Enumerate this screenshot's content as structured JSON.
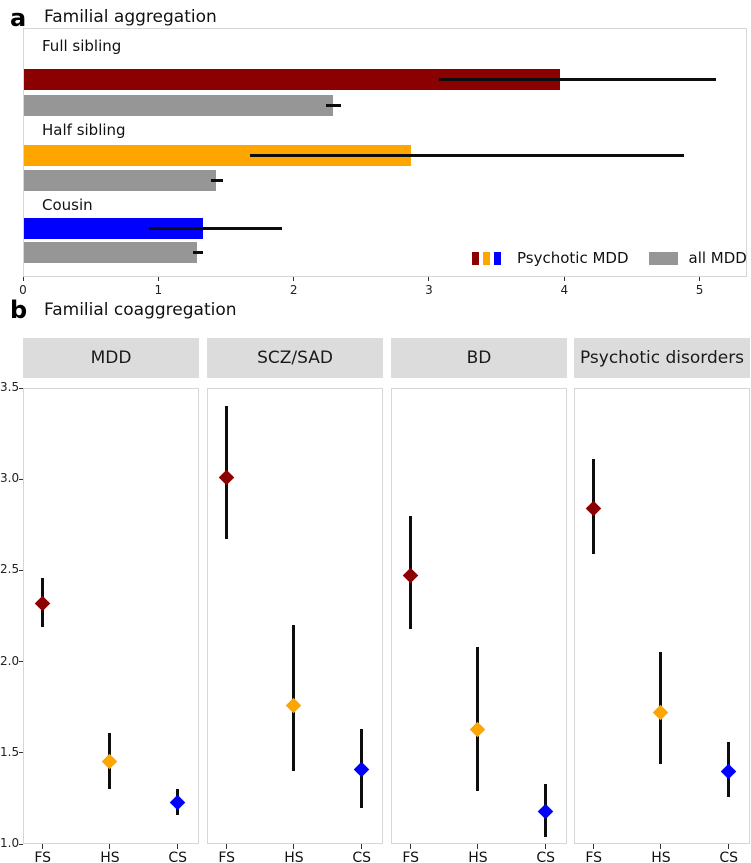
{
  "chart_data": [
    {
      "type": "bar",
      "orientation": "horizontal",
      "panel_label": "a",
      "title": "Familial aggregation",
      "xlim": [
        0,
        5.35
      ],
      "x_ticks": [
        0,
        1,
        2,
        3,
        4,
        5
      ],
      "grid": false,
      "legend_position": "bottom-right",
      "categories": [
        "Full sibling",
        "Half sibling",
        "Cousin"
      ],
      "series": [
        {
          "name": "Psychotic MDD",
          "colors": [
            "#8B0000",
            "#FFA500",
            "#0000FF"
          ],
          "values": [
            3.96,
            2.86,
            1.32
          ],
          "ci_low": [
            3.07,
            1.67,
            0.92
          ],
          "ci_high": [
            5.11,
            4.88,
            1.91
          ]
        },
        {
          "name": "all MDD",
          "color": "#969696",
          "values": [
            2.28,
            1.42,
            1.28
          ],
          "ci_low": [
            2.23,
            1.38,
            1.25
          ],
          "ci_high": [
            2.34,
            1.47,
            1.32
          ]
        }
      ]
    },
    {
      "type": "scatter",
      "marker": "diamond",
      "panel_label": "b",
      "title": "Familial coaggregation",
      "ylim": [
        1.0,
        3.5
      ],
      "y_ticks": [
        3.5,
        3.0,
        2.5,
        2.0,
        1.5,
        1.0
      ],
      "x_categories": [
        "FS",
        "HS",
        "CS"
      ],
      "point_colors": {
        "FS": "#8B0000",
        "HS": "#FFA500",
        "CS": "#0000FF"
      },
      "strip_color": "#dcdcdc",
      "facets": [
        {
          "label": "MDD",
          "points": [
            {
              "x": "FS",
              "y": 2.32,
              "ci_low": 2.19,
              "ci_high": 2.46
            },
            {
              "x": "HS",
              "y": 1.45,
              "ci_low": 1.3,
              "ci_high": 1.61
            },
            {
              "x": "CS",
              "y": 1.23,
              "ci_low": 1.16,
              "ci_high": 1.3
            }
          ]
        },
        {
          "label": "SCZ/SAD",
          "points": [
            {
              "x": "FS",
              "y": 3.01,
              "ci_low": 2.67,
              "ci_high": 3.4
            },
            {
              "x": "HS",
              "y": 1.76,
              "ci_low": 1.4,
              "ci_high": 2.2
            },
            {
              "x": "CS",
              "y": 1.41,
              "ci_low": 1.2,
              "ci_high": 1.63
            }
          ]
        },
        {
          "label": "BD",
          "points": [
            {
              "x": "FS",
              "y": 2.47,
              "ci_low": 2.18,
              "ci_high": 2.8
            },
            {
              "x": "HS",
              "y": 1.63,
              "ci_low": 1.29,
              "ci_high": 2.08
            },
            {
              "x": "CS",
              "y": 1.18,
              "ci_low": 1.04,
              "ci_high": 1.33
            }
          ]
        },
        {
          "label": "Psychotic disorders",
          "points": [
            {
              "x": "FS",
              "y": 2.84,
              "ci_low": 2.59,
              "ci_high": 3.11
            },
            {
              "x": "HS",
              "y": 1.72,
              "ci_low": 1.44,
              "ci_high": 2.05
            },
            {
              "x": "CS",
              "y": 1.4,
              "ci_low": 1.26,
              "ci_high": 1.56
            }
          ]
        }
      ]
    }
  ]
}
